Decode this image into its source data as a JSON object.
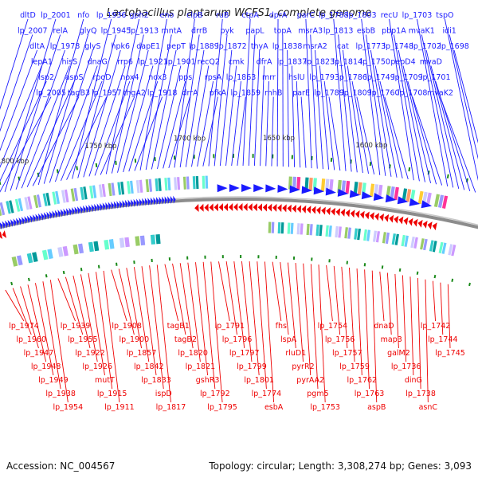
{
  "title": "Lactobacillus plantarum WCFS1, complete genome",
  "footer": {
    "accession": "Accession: NC_004567",
    "topology": "Topology: circular; Length: 3,308,274 bp; Genes: 3,093"
  },
  "colors": {
    "forward": "#1a1aff",
    "reverse": "#ee0000",
    "backbone": "#8c8c8c",
    "scale_text": "#333333",
    "tick_green": "#1a8a1a"
  },
  "scale_labels": [
    "1800 kbp",
    "1750 kbp",
    "1700 kbp",
    "1650 kbp",
    "1600 kbp"
  ],
  "forward_labels": [
    "dltD",
    "lp_2007",
    "dltA",
    "lepA1",
    "lsp2",
    "lp_2005",
    "lp_2001",
    "relA",
    "lp_1978",
    "hisS",
    "aspS",
    "tagB3",
    "nfo",
    "glyQ",
    "glyS",
    "dnaG",
    "rpoD",
    "lp_1957",
    "lp_1936",
    "lp_1945",
    "hpk6",
    "rrp6",
    "nox4",
    "thgA2",
    "gph2",
    "lp_1913",
    "dapE1",
    "lp_1921",
    "nox3",
    "lp_1918",
    "eno",
    "mntA",
    "pepT",
    "lp_1901",
    "pps",
    "drrA",
    "clpB",
    "drrB",
    "lp_1889",
    "recQ2",
    "rpsA",
    "pfkA",
    "ruB",
    "pyk",
    "lp_1872",
    "cmk",
    "lp_1863",
    "lp_1859",
    "ctpA",
    "papL",
    "thyA",
    "dfrA",
    "mrr",
    "rnhB",
    "dprA",
    "topA",
    "lp_1838",
    "lp_1837",
    "hslU",
    "parE",
    "parC",
    "msrA3",
    "msrA2",
    "lp_1823",
    "lp_1793",
    "lp_1789",
    "lp_1788",
    "lp_1813",
    "cat",
    "lp_1814",
    "lp_1786",
    "lp_1809",
    "lp_1803",
    "esbB",
    "lp_1773",
    "lp_1750",
    "lp_1749",
    "lp_1760",
    "recU",
    "pbp1A",
    "lp_1748",
    "pepD4",
    "lp_1709",
    "lp_1708",
    "lp_1703",
    "mvaK1",
    "lp_1702",
    "mvaD",
    "lp_1701",
    "mvaK2",
    "tspO",
    "idi1",
    "lp_1698"
  ],
  "reverse_labels": [
    "lp_1974",
    "lp_1960",
    "lp_1947",
    "lp_1948",
    "lp_1949",
    "lp_1938",
    "lp_1954",
    "lp_1939",
    "lp_1955",
    "lp_1922",
    "lp_1926",
    "mutT",
    "lp_1915",
    "lp_1911",
    "lp_1908",
    "lp_1900",
    "lp_1857",
    "lp_1842",
    "lp_1833",
    "ispD",
    "lp_1817",
    "tagB1",
    "tagB2",
    "lp_1820",
    "lp_1821",
    "gshR3",
    "lp_1792",
    "lp_1795",
    "lp_1791",
    "lp_1796",
    "lp_1797",
    "lp_1799",
    "lp_1801",
    "lp_1774",
    "esbA",
    "fhs",
    "lspA",
    "rluD1",
    "pyrR2",
    "pyrAA2",
    "pgm5",
    "lp_1753",
    "lp_1754",
    "lp_1756",
    "lp_1757",
    "lp_1759",
    "lp_1762",
    "lp_1763",
    "aspB",
    "dnaD",
    "map3",
    "galM2",
    "lp_1736",
    "dinG",
    "lp_1738",
    "asnC",
    "lp_1742",
    "lp_1744",
    "lp_1745"
  ]
}
